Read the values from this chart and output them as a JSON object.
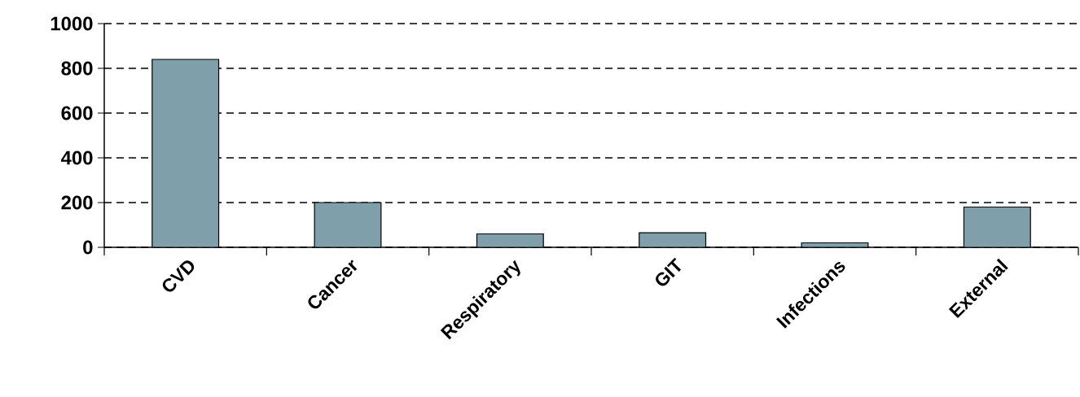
{
  "chart_data": {
    "type": "bar",
    "categories": [
      "CVD",
      "Cancer",
      "Respiratory",
      "GIT",
      "Infections",
      "External"
    ],
    "values": [
      840,
      200,
      60,
      65,
      20,
      180
    ],
    "color": "#7fa0aa",
    "ylim": [
      0,
      1000
    ],
    "yticks": [
      0,
      200,
      400,
      600,
      800,
      1000
    ],
    "grid": "y"
  }
}
